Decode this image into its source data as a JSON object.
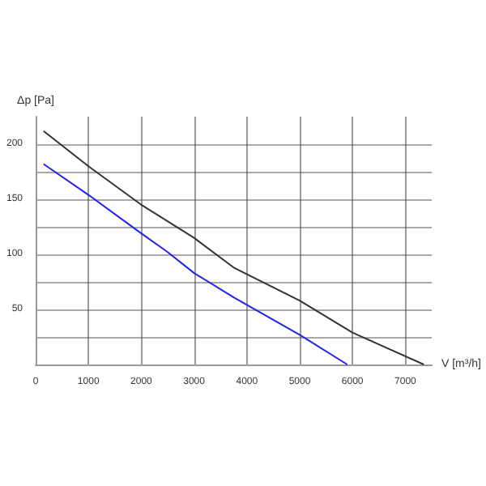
{
  "chart_data": {
    "type": "line",
    "xlabel": "V [m³/h]",
    "ylabel": "Δp [Pa]",
    "xlim": [
      0,
      7500
    ],
    "ylim": [
      0,
      225
    ],
    "xticks": [
      0,
      1000,
      2000,
      3000,
      4000,
      5000,
      6000,
      7000
    ],
    "yticks": [
      {
        "value": 25,
        "label": null
      },
      50,
      {
        "value": 75,
        "label": null
      },
      100,
      {
        "value": 125,
        "label": null
      },
      150,
      {
        "value": 175,
        "label": null
      },
      200
    ],
    "grid": true,
    "marker": "none",
    "line_style": "solid",
    "series": [
      {
        "color": "#333333",
        "x": [
          150,
          1000,
          2000,
          3000,
          3750,
          5000,
          6000,
          7350
        ],
        "values": [
          212,
          180,
          145,
          115,
          88,
          58,
          29,
          0
        ]
      },
      {
        "color": "#2222ee",
        "x": [
          150,
          1000,
          2000,
          2500,
          3000,
          3750,
          5000,
          5900
        ],
        "values": [
          182,
          154,
          119,
          102,
          83,
          61,
          27,
          0
        ]
      }
    ]
  }
}
